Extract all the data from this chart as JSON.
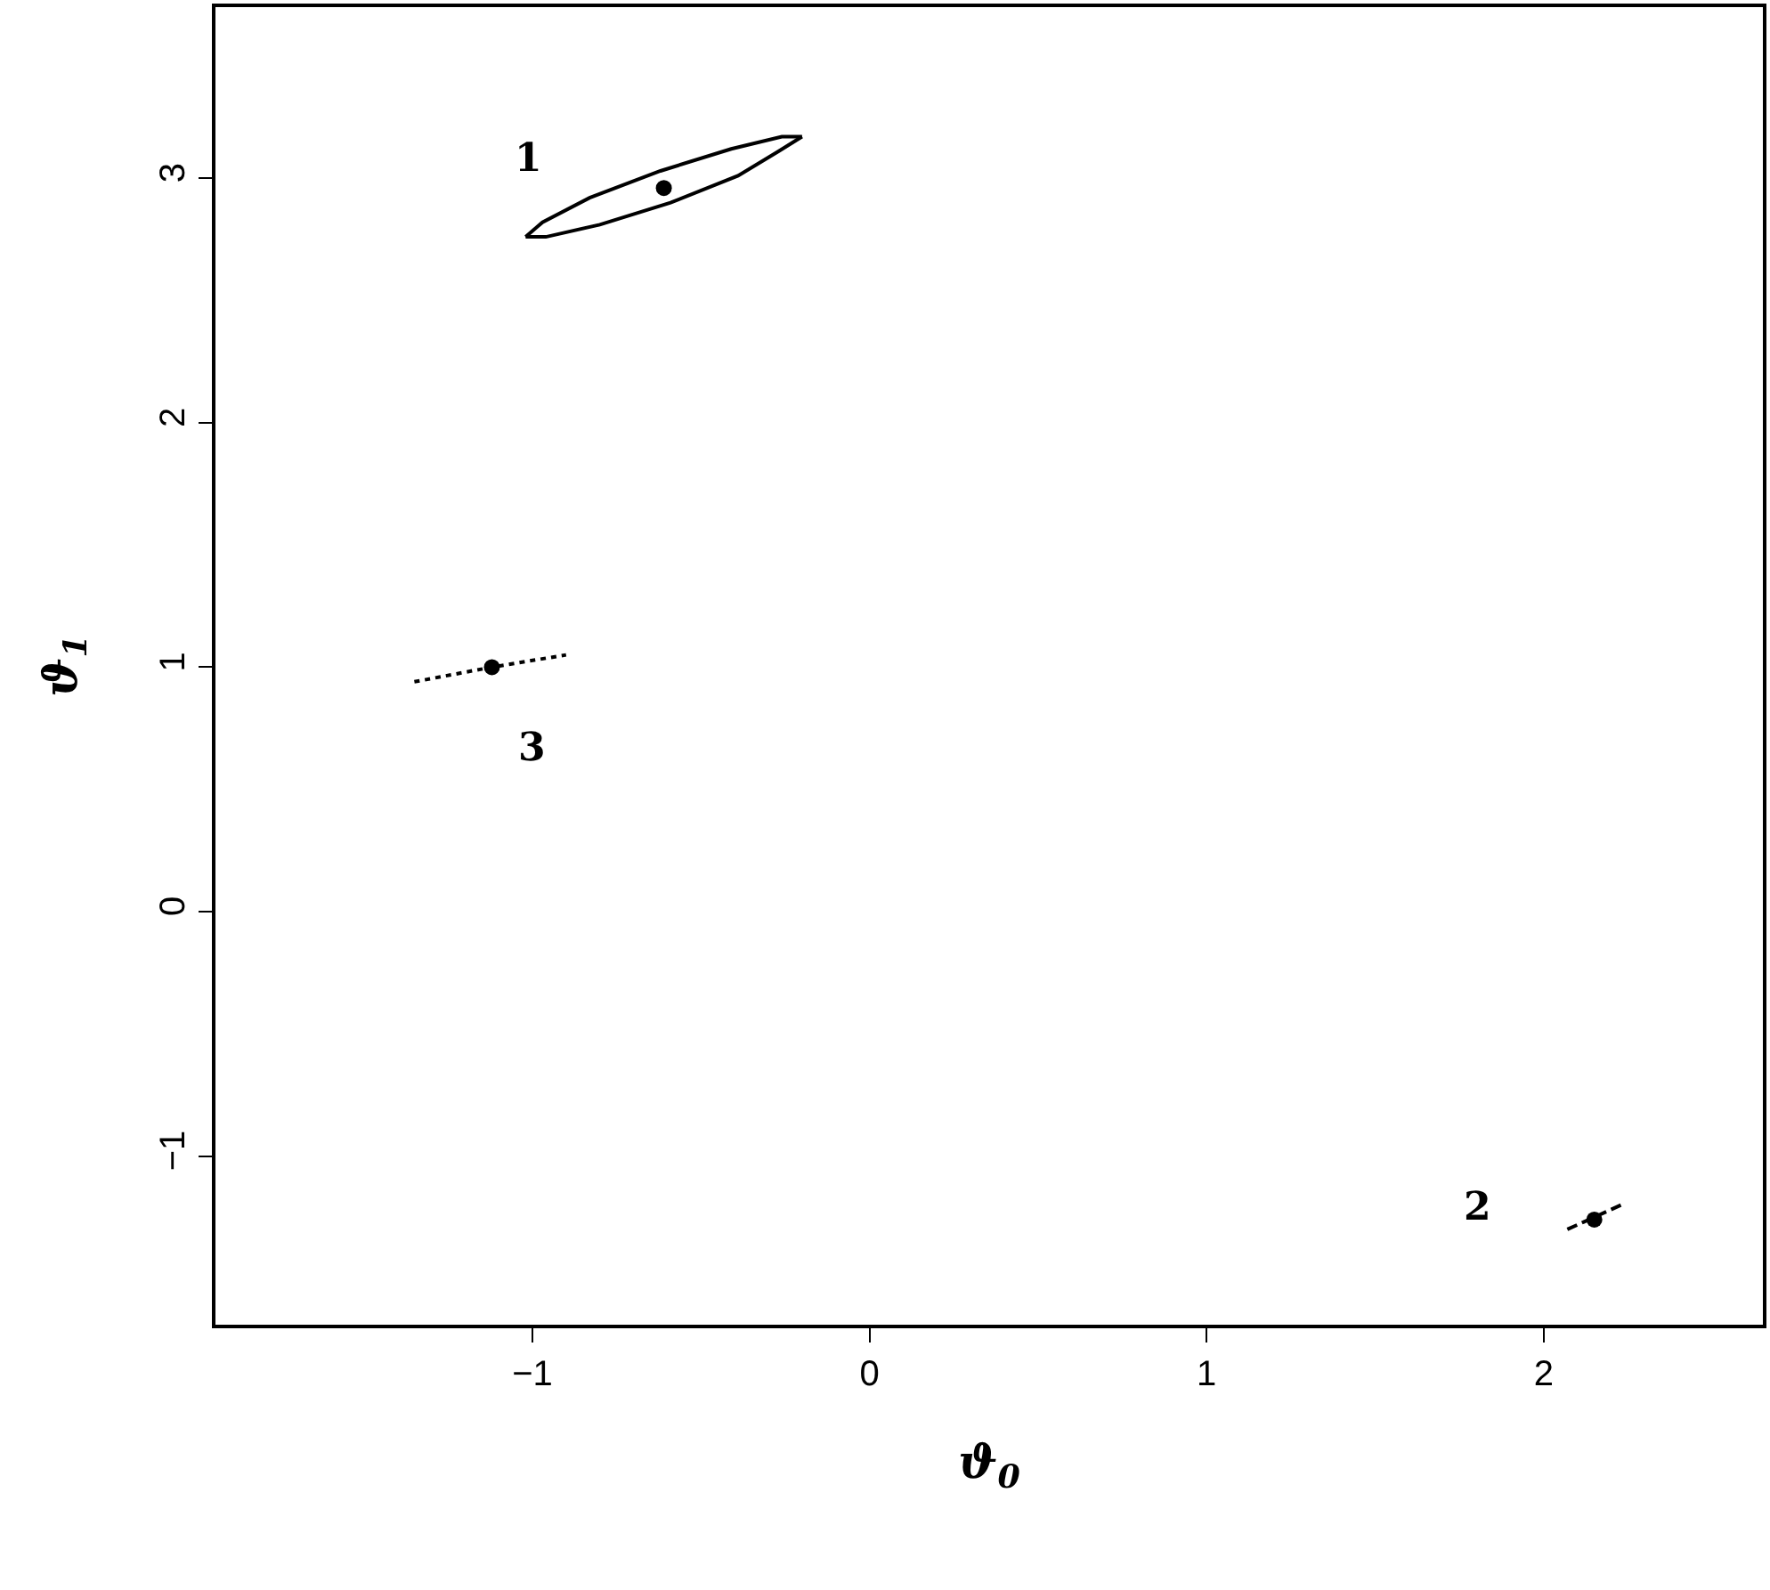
{
  "chart_data": {
    "type": "scatter",
    "xlabel": "ϑ$_{0}$",
    "ylabel": "ϑ$_{1}$",
    "xlim": [
      -1.94,
      2.65
    ],
    "ylim": [
      -1.69,
      3.7
    ],
    "xticks": [
      -1,
      0,
      1,
      2
    ],
    "yticks": [
      -1,
      0,
      1,
      2,
      3
    ],
    "series": [
      {
        "type": "line",
        "line_style": "solid",
        "marker": "none",
        "color": "#000000",
        "x": [
          -1.02,
          -0.97,
          -0.83,
          -0.62,
          -0.41,
          -0.26,
          -0.2
        ],
        "values": [
          2.76,
          2.82,
          2.92,
          3.03,
          3.12,
          3.17,
          3.17
        ]
      },
      {
        "type": "line",
        "line_style": "solid",
        "marker": "none",
        "color": "#000000",
        "x": [
          -1.02,
          -0.96,
          -0.8,
          -0.59,
          -0.39,
          -0.27,
          -0.2
        ],
        "values": [
          2.76,
          2.76,
          2.81,
          2.9,
          3.01,
          3.11,
          3.17
        ]
      },
      {
        "type": "line",
        "line_style": "dashed",
        "marker": "none",
        "color": "#000000",
        "x": [
          2.07,
          2.15,
          2.23
        ],
        "values": [
          -1.3,
          -1.25,
          -1.2
        ]
      },
      {
        "type": "line",
        "line_style": "dotted",
        "marker": "none",
        "color": "#000000",
        "x": [
          -1.35,
          -1.12,
          -0.9
        ],
        "values": [
          0.94,
          1.0,
          1.05
        ]
      },
      {
        "marker": "circle",
        "color": "#000000",
        "x": [
          -0.61,
          2.15,
          -1.12
        ],
        "values": [
          2.96,
          -1.26,
          1.0
        ]
      }
    ],
    "annotations": [
      "1",
      "2",
      "3"
    ]
  }
}
